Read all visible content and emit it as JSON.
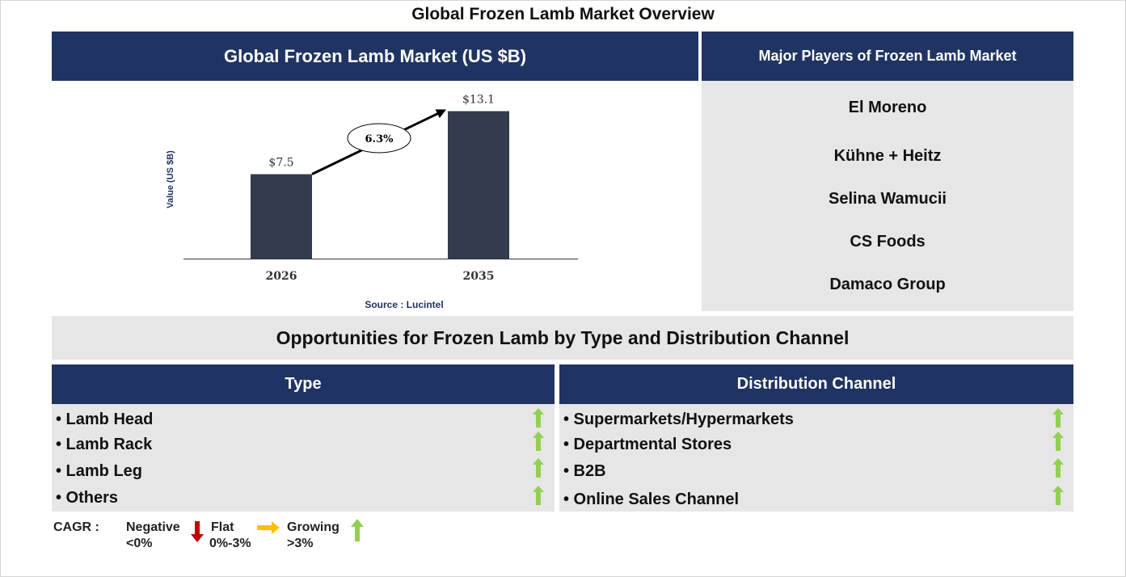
{
  "title": "Global Frozen Lamb Market Overview",
  "chart_panel": {
    "header": "Global Frozen Lamb Market (US $B)",
    "source": "Source : Lucintel"
  },
  "chart_data": {
    "type": "bar",
    "categories": [
      "2026",
      "2035"
    ],
    "values": [
      7.5,
      13.1
    ],
    "value_labels": [
      "$7.5",
      "$13.1"
    ],
    "ylabel": "Value (US $B)",
    "ylim": [
      0,
      14
    ],
    "grid": false,
    "bar_color": "#323c4e",
    "cagr_label": "6.3%"
  },
  "players": {
    "header": "Major Players of Frozen Lamb Market",
    "items": [
      "El Moreno",
      "Kühne + Heitz",
      "Selina Wamucii",
      "CS Foods",
      "Damaco Group"
    ]
  },
  "opportunities": {
    "header": "Opportunities for Frozen Lamb by Type and Distribution Channel",
    "type": {
      "header": "Type",
      "items": [
        "• Lamb Head",
        "• Lamb Rack",
        "• Lamb Leg",
        "• Others"
      ],
      "trend": [
        "growing",
        "growing",
        "growing",
        "growing"
      ]
    },
    "channel": {
      "header": "Distribution Channel",
      "items": [
        "• Supermarkets/Hypermarkets",
        "• Departmental Stores",
        "• B2B",
        "• Online Sales Channel"
      ],
      "trend": [
        "growing",
        "growing",
        "growing",
        "growing"
      ]
    }
  },
  "legend": {
    "label": "CAGR :",
    "negative": {
      "name": "Negative",
      "range": "<0%",
      "color": "#c00000",
      "icon": "arrow-down-icon"
    },
    "flat": {
      "name": "Flat",
      "range": "0%-3%",
      "color": "#ffc000",
      "icon": "arrow-right-icon"
    },
    "growing": {
      "name": "Growing",
      "range": ">3%",
      "color": "#92d050",
      "icon": "arrow-up-icon"
    }
  },
  "colors": {
    "navy": "#1f3462",
    "panel_grey": "#e6e6e6",
    "growing": "#92d050"
  }
}
